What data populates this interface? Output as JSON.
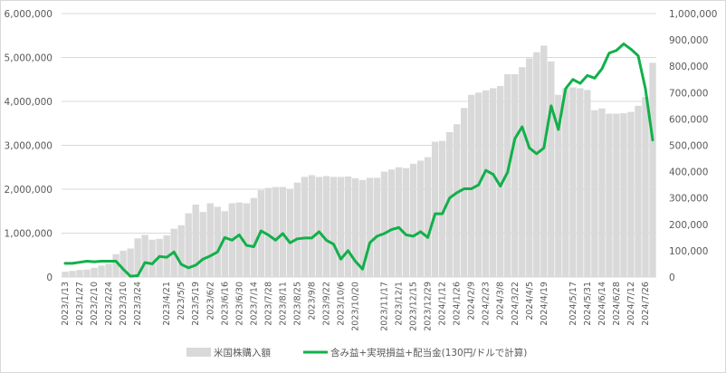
{
  "chart_data": {
    "type": "bar+line",
    "title": "",
    "categories": [
      "2023/1/13",
      "2023/1/20",
      "2023/1/27",
      "2023/2/3",
      "2023/2/10",
      "2023/2/17",
      "2023/2/24",
      "2023/3/3",
      "2023/3/10",
      "2023/3/17",
      "2023/3/24",
      "2023/3/31",
      "2023/4/7",
      "2023/4/14",
      "2023/4/21",
      "2023/4/28",
      "2023/5/5",
      "2023/5/12",
      "2023/5/19",
      "2023/5/26",
      "2023/6/2",
      "2023/6/9",
      "2023/6/16",
      "2023/6/23",
      "2023/6/30",
      "2023/7/7",
      "2023/7/14",
      "2023/7/21",
      "2023/7/28",
      "2023/8/4",
      "2023/8/11",
      "2023/8/18",
      "2023/8/25",
      "2023/9/1",
      "2023/9/8",
      "2023/9/15",
      "2023/9/22",
      "2023/9/29",
      "2023/10/6",
      "2023/10/13",
      "2023/10/20",
      "2023/10/27",
      "2023/11/3",
      "2023/11/10",
      "2023/11/17",
      "2023/11/24",
      "2023/12/1",
      "2023/12/8",
      "2023/12/15",
      "2023/12/22",
      "2023/12/29",
      "2024/1/5",
      "2024/1/12",
      "2024/1/19",
      "2024/1/26",
      "2024/2/2",
      "2024/2/9",
      "2024/2/16",
      "2024/2/23",
      "2024/3/1",
      "2024/3/8",
      "2024/3/15",
      "2024/3/22",
      "2024/3/29",
      "2024/4/5",
      "2024/4/12",
      "2024/4/19",
      "2024/4/26",
      "2024/5/3",
      "2024/5/10",
      "2024/5/17",
      "2024/5/24",
      "2024/5/31",
      "2024/6/7",
      "2024/6/14",
      "2024/6/21",
      "2024/6/28",
      "2024/7/5",
      "2024/7/12",
      "2024/7/19",
      "2024/7/26",
      "2024/8/2"
    ],
    "x_tick_labels": [
      "2023/1/13",
      "2023/1/27",
      "2023/2/10",
      "2023/2/24",
      "2023/3/10",
      "2023/3/24",
      "2023/4/21",
      "2023/5/5",
      "2023/5/19",
      "2023/6/2",
      "2023/6/16",
      "2023/6/30",
      "2023/7/14",
      "2023/7/28",
      "2023/8/11",
      "2023/8/25",
      "2023/9/8",
      "2023/9/22",
      "2023/10/6",
      "2023/10/20",
      "2023/11/2",
      "2023/11/17",
      "2023/12/1",
      "2023/12/15",
      "2023/12/29",
      "2024/1/12",
      "2024/1/26",
      "2024/2/9",
      "2024/2/23",
      "2024/3/8",
      "2024/3/22",
      "2024/4/5",
      "2024/4/19",
      "2024/5/2",
      "2024/5/17",
      "2024/5/31",
      "2024/6/14",
      "2024/6/28",
      "2024/7/12",
      "2024/7/26"
    ],
    "series": [
      {
        "name": "米国株購入額",
        "type": "bar",
        "axis": "left",
        "color": "#d9d9d9",
        "values": [
          120000,
          140000,
          160000,
          170000,
          210000,
          260000,
          300000,
          520000,
          600000,
          650000,
          880000,
          960000,
          850000,
          870000,
          950000,
          1100000,
          1180000,
          1450000,
          1650000,
          1480000,
          1680000,
          1600000,
          1500000,
          1680000,
          1700000,
          1680000,
          1800000,
          1980000,
          2030000,
          2050000,
          2050000,
          2000000,
          2150000,
          2280000,
          2320000,
          2280000,
          2300000,
          2280000,
          2280000,
          2290000,
          2250000,
          2210000,
          2260000,
          2260000,
          2400000,
          2450000,
          2500000,
          2480000,
          2580000,
          2650000,
          2730000,
          3080000,
          3100000,
          3300000,
          3480000,
          3850000,
          4150000,
          4200000,
          4250000,
          4300000,
          4350000,
          4620000,
          4620000,
          4780000,
          4980000,
          5120000,
          5270000,
          4910000,
          4150000,
          4300000,
          4320000,
          4300000,
          4260000,
          3800000,
          3840000,
          3720000,
          3720000,
          3730000,
          3760000,
          3900000,
          4100000,
          4880000
        ]
      },
      {
        "name": "含み益+実現損益+配当金(130円/ドルで計算)",
        "type": "line",
        "axis": "right",
        "color": "#12b04a",
        "values": [
          52000,
          52000,
          56000,
          60000,
          58000,
          60000,
          60000,
          60000,
          30000,
          3000,
          5000,
          55000,
          50000,
          78000,
          75000,
          95000,
          48000,
          35000,
          45000,
          68000,
          80000,
          95000,
          150000,
          140000,
          160000,
          120000,
          115000,
          175000,
          160000,
          140000,
          165000,
          130000,
          145000,
          148000,
          148000,
          172000,
          140000,
          125000,
          68000,
          100000,
          60000,
          30000,
          130000,
          155000,
          165000,
          180000,
          188000,
          160000,
          155000,
          172000,
          150000,
          240000,
          240000,
          300000,
          320000,
          335000,
          335000,
          350000,
          405000,
          390000,
          345000,
          398000,
          525000,
          570000,
          490000,
          468000,
          490000,
          650000,
          560000,
          715000,
          750000,
          735000,
          765000,
          755000,
          790000,
          850000,
          860000,
          885000,
          865000,
          840000,
          715000,
          520000
        ]
      }
    ],
    "y_left": {
      "min": 0,
      "max": 6000000,
      "step": 1000000,
      "ticks": [
        "0",
        "1,000,000",
        "2,000,000",
        "3,000,000",
        "4,000,000",
        "5,000,000",
        "6,000,000"
      ]
    },
    "y_right": {
      "min": 0,
      "max": 1000000,
      "step": 100000,
      "ticks": [
        "0",
        "100,000",
        "200,000",
        "300,000",
        "400,000",
        "500,000",
        "600,000",
        "700,000",
        "800,000",
        "900,000",
        "1,000,000"
      ]
    },
    "grid": true,
    "legend": "bottom-center",
    "gridline_color": "#d9d9d9"
  }
}
